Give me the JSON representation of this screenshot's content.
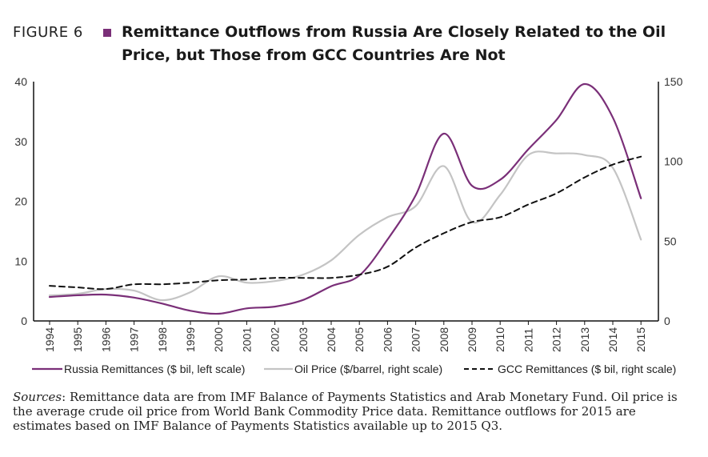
{
  "figure": {
    "label": "FIGURE 6",
    "title": "Remittance Outflows from Russia Are Closely Related to the Oil Price, but Those from GCC Countries Are Not"
  },
  "sources": {
    "label": "Sources",
    "text": ": Remittance data are from IMF Balance of Payments Statistics and Arab Monetary Fund. Oil price is the average crude oil price from World Bank Commodity Price data. Remittance outflows for 2015 are estimates based on IMF Balance of Payments Statistics available up to 2015 Q3."
  },
  "colors": {
    "russia": "#7a2f78",
    "oil": "#c4c4c4",
    "gcc": "#111111"
  },
  "chart_data": {
    "type": "line",
    "categories": [
      "1994",
      "1995",
      "1996",
      "1997",
      "1998",
      "1999",
      "2000",
      "2001",
      "2002",
      "2003",
      "2004",
      "2005",
      "2006",
      "2007",
      "2008",
      "2009",
      "2010",
      "2011",
      "2012",
      "2013",
      "2014",
      "2015"
    ],
    "left_axis": {
      "ticks": [
        0,
        10,
        20,
        30,
        40
      ],
      "range": [
        0,
        40
      ]
    },
    "right_axis": {
      "ticks": [
        0,
        50,
        100,
        150
      ],
      "range": [
        0,
        150
      ]
    },
    "series": [
      {
        "name": "Russia Remittances ($ bil,  left scale)",
        "axis": "left",
        "style": "solid",
        "values": [
          4.0,
          4.3,
          4.4,
          3.9,
          2.9,
          1.7,
          1.2,
          2.1,
          2.4,
          3.5,
          5.8,
          7.6,
          13.6,
          21.0,
          31.3,
          22.6,
          23.6,
          28.7,
          33.6,
          39.6,
          34.0,
          20.5
        ]
      },
      {
        "name": "Oil Price ($/barrel, right scale)",
        "axis": "right",
        "style": "solid",
        "values": [
          16,
          17,
          20,
          19,
          13,
          18,
          28,
          24,
          25,
          29,
          38,
          54,
          65,
          72,
          97,
          62,
          79,
          104,
          105,
          104,
          96,
          51
        ]
      },
      {
        "name": "GCC Remittances ($ bil,  right scale)",
        "axis": "right",
        "style": "dashed",
        "values": [
          22,
          21,
          20,
          23,
          23,
          24,
          25.5,
          26,
          27,
          27,
          27,
          29,
          34,
          46,
          55,
          62,
          65,
          73,
          80,
          90,
          98,
          103
        ]
      }
    ]
  }
}
